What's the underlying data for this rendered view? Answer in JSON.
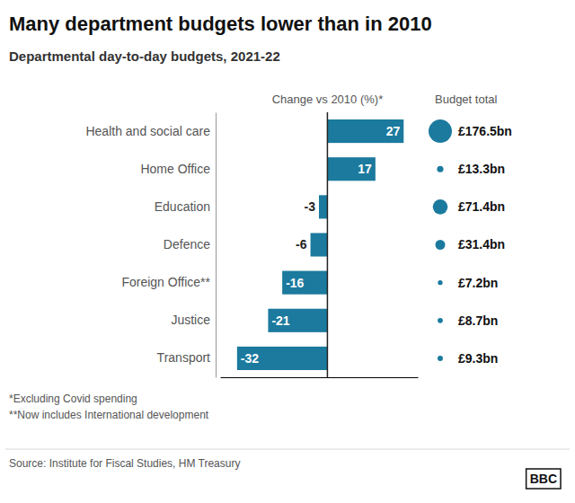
{
  "chart_data": {
    "type": "bar",
    "orientation": "horizontal",
    "title": "Many department budgets lower than in 2010",
    "subtitle": "Departmental day-to-day budgets, 2021-22",
    "xlabel": "Change vs 2010 (%)*",
    "categories": [
      "Health and social care",
      "Home Office",
      "Education",
      "Defence",
      "Foreign Office**",
      "Justice",
      "Transport"
    ],
    "values": [
      27,
      17,
      -3,
      -6,
      -16,
      -21,
      -32
    ],
    "color": "#1b7a9e",
    "data_labels": true,
    "xlim": [
      -38,
      32
    ],
    "xticks": [],
    "tick_labels": "y",
    "budget_label": "Budget total",
    "budgets": [
      176.5,
      13.3,
      71.4,
      31.4,
      7.2,
      8.7,
      9.3
    ],
    "budget_labels": [
      "£176.5bn",
      "£13.3bn",
      "£71.4bn",
      "£31.4bn",
      "£7.2bn",
      "£8.7bn",
      "£9.3bn"
    ],
    "footnotes": [
      "*Excluding Covid spending",
      "**Now includes International development"
    ],
    "source": "Source: Institute for Fiscal Studies, HM Treasury",
    "logo": "BBC"
  }
}
